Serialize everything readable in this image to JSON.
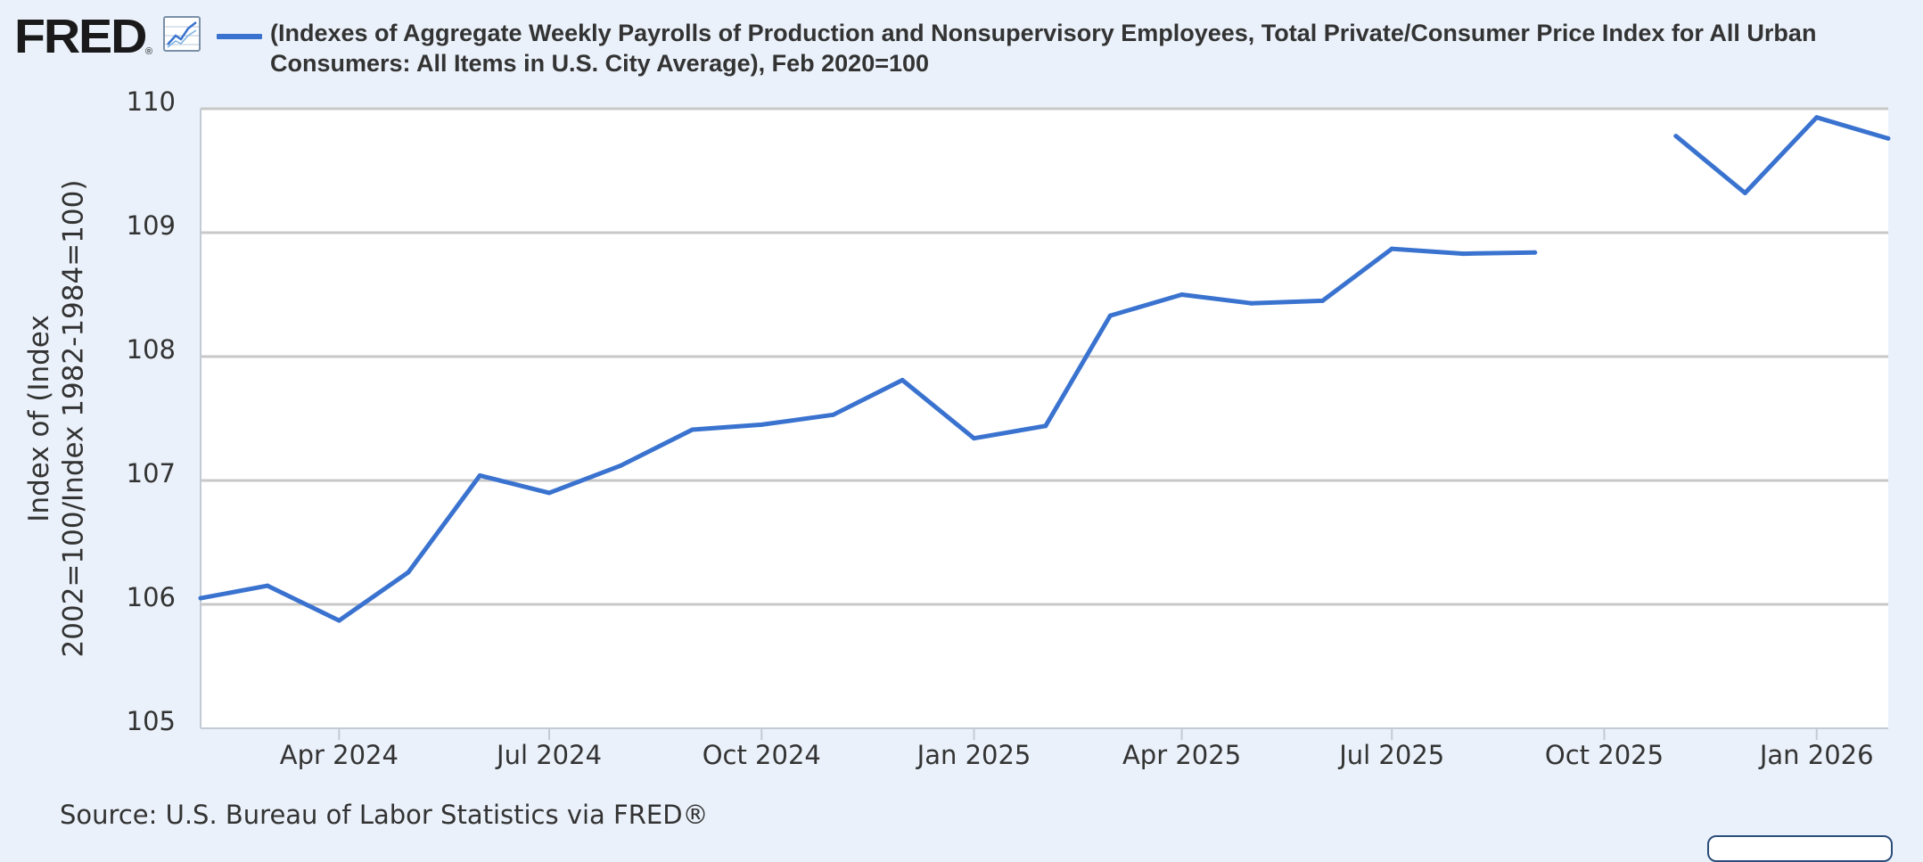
{
  "header": {
    "logo_text": "FRED",
    "logo_mark": "®",
    "graph_icon": "line-chart-icon",
    "legend_text": "(Indexes of Aggregate Weekly Payrolls of Production and Nonsupervisory Employees, Total Private/Consumer Price Index for All Urban Consumers: All Items in U.S. City Average), Feb 2020=100"
  },
  "source": "Source: U.S. Bureau of Labor Statistics via FRED®",
  "colors": {
    "series": "#3a73cf",
    "background": "#eaf1fa",
    "plot_background": "#ffffff",
    "grid": "#c8c8c8"
  },
  "chart_data": {
    "type": "line",
    "title": "",
    "xlabel": "",
    "ylabel": "Index of (Index 2002=100/Index 1982-1984=100)",
    "ylim": [
      105,
      110
    ],
    "xlim": [
      "2024-02-01",
      "2026-02-01"
    ],
    "y_ticks": [
      105,
      106,
      107,
      108,
      109,
      110
    ],
    "x_ticks": [
      {
        "date": "2024-04-01",
        "label": "Apr 2024"
      },
      {
        "date": "2024-07-01",
        "label": "Jul 2024"
      },
      {
        "date": "2024-10-01",
        "label": "Oct 2024"
      },
      {
        "date": "2025-01-01",
        "label": "Jan 2025"
      },
      {
        "date": "2025-04-01",
        "label": "Apr 2025"
      },
      {
        "date": "2025-07-01",
        "label": "Jul 2025"
      },
      {
        "date": "2025-10-01",
        "label": "Oct 2025"
      },
      {
        "date": "2026-01-01",
        "label": "Jan 2026"
      }
    ],
    "grid": true,
    "legend": "top",
    "series": [
      {
        "name": "(Indexes of Aggregate Weekly Payrolls of Production and Nonsupervisory Employees, Total Private/Consumer Price Index for All Urban Consumers: All Items in U.S. City Average), Feb 2020=100",
        "x": [
          "2024-02-01",
          "2024-03-01",
          "2024-04-01",
          "2024-05-01",
          "2024-06-01",
          "2024-07-01",
          "2024-08-01",
          "2024-09-01",
          "2024-10-01",
          "2024-11-01",
          "2024-12-01",
          "2025-01-01",
          "2025-02-01",
          "2025-03-01",
          "2025-04-01",
          "2025-05-01",
          "2025-06-01",
          "2025-07-01",
          "2025-08-01",
          "2025-09-01",
          "2025-10-01",
          "2025-11-01",
          "2025-12-01",
          "2026-01-01",
          "2026-02-01"
        ],
        "values": [
          106.05,
          106.15,
          105.87,
          106.26,
          107.04,
          106.9,
          107.12,
          107.41,
          107.45,
          107.53,
          107.81,
          107.34,
          107.44,
          108.33,
          108.5,
          108.43,
          108.45,
          108.87,
          108.83,
          108.84,
          null,
          109.78,
          109.32,
          109.93,
          109.76
        ]
      }
    ]
  }
}
